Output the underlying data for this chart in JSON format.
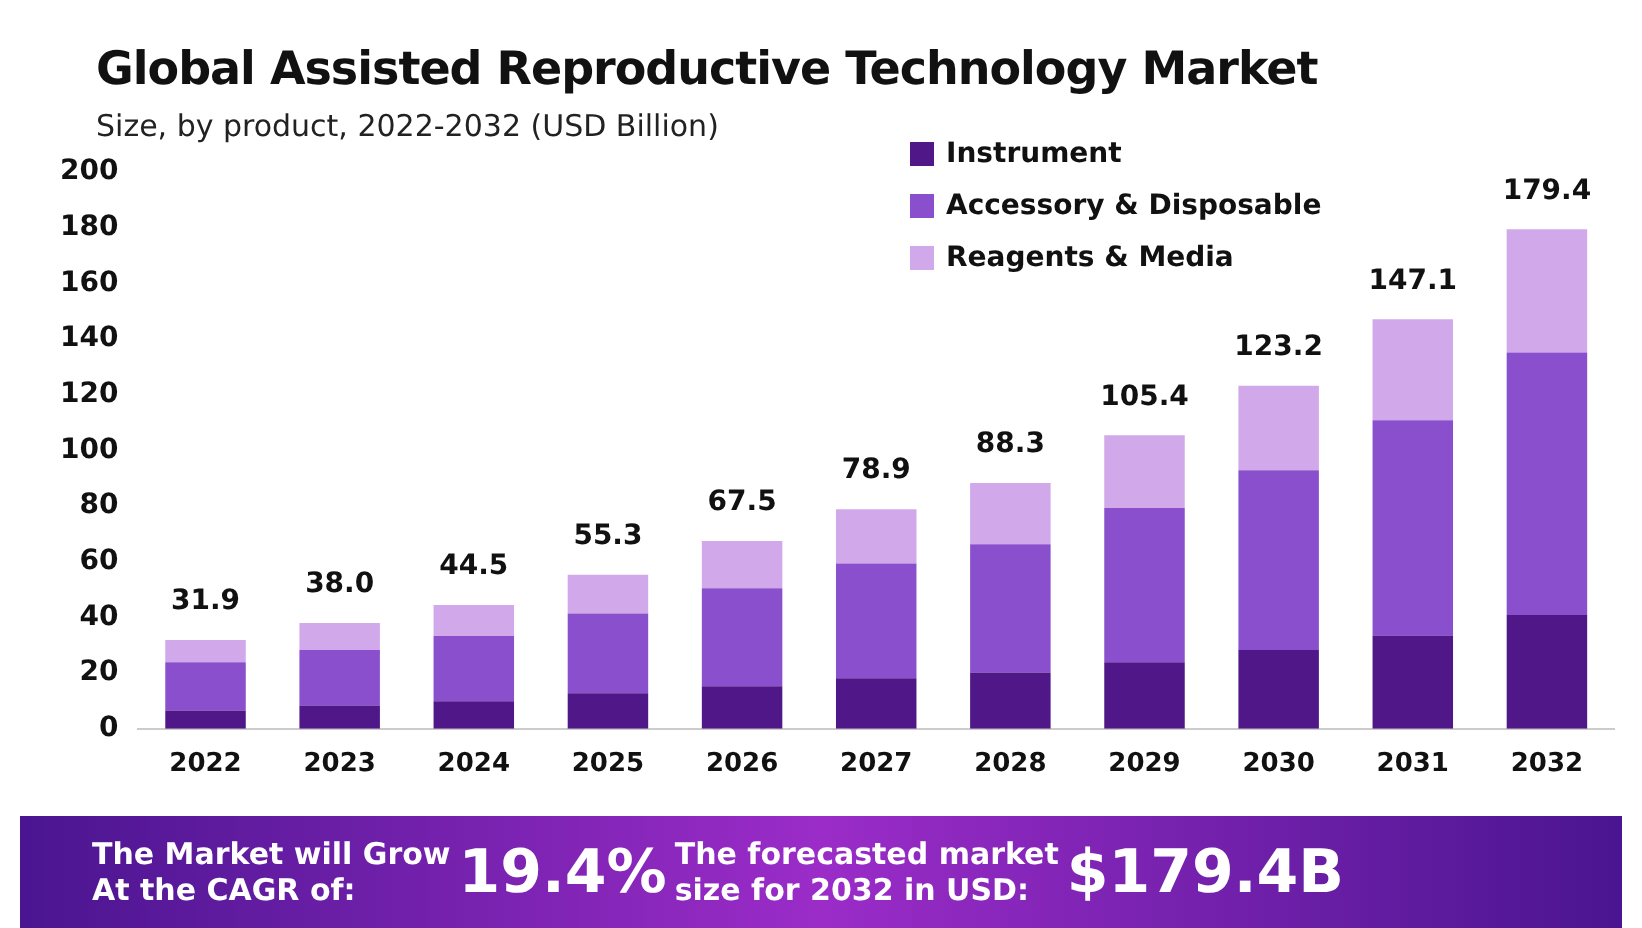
{
  "chart_data": {
    "type": "bar",
    "title": "Global Assisted Reproductive Technology Market",
    "subtitle": "Size, by product, 2022-2032 (USD Billion)",
    "categories": [
      "2022",
      "2023",
      "2024",
      "2025",
      "2026",
      "2027",
      "2028",
      "2029",
      "2030",
      "2031",
      "2032"
    ],
    "series": [
      {
        "name": "Instrument",
        "color": "#4f1787",
        "values": [
          6.6,
          8.4,
          9.9,
          12.8,
          15.3,
          18.2,
          20.2,
          23.9,
          28.3,
          33.5,
          40.9
        ]
      },
      {
        "name": "Accessory & Disposable",
        "color": "#8a4fcc",
        "values": [
          17.3,
          19.9,
          23.4,
          28.6,
          35.2,
          41.2,
          46.1,
          55.4,
          64.6,
          77.3,
          94.3
        ]
      },
      {
        "name": "Reagents & Media",
        "color": "#d1a8ea",
        "values": [
          8.0,
          9.7,
          11.2,
          13.9,
          17.0,
          19.5,
          22.0,
          26.1,
          30.3,
          36.3,
          44.2
        ]
      }
    ],
    "stacked": true,
    "totals": [
      "31.9",
      "38.0",
      "44.5",
      "55.3",
      "67.5",
      "78.9",
      "88.3",
      "105.4",
      "123.2",
      "147.1",
      "179.4"
    ],
    "ylim": [
      0,
      200
    ],
    "yticks": [
      0,
      20,
      40,
      60,
      80,
      100,
      120,
      140,
      160,
      180,
      200
    ],
    "grid": false,
    "legend": "top",
    "annotations": [
      "The Market will Grow\nAt the CAGR of:",
      "19.4%",
      "The forecasted market\nsize for 2032 in USD:",
      "$179.4B"
    ]
  }
}
